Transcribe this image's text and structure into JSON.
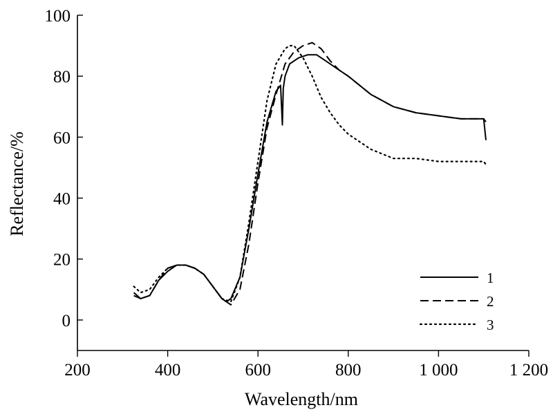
{
  "chart_data": {
    "type": "line",
    "title": "",
    "xlabel": "Wavelength/nm",
    "ylabel": "Reflectance/%",
    "xlim": [
      200,
      1200
    ],
    "ylim": [
      -10,
      100
    ],
    "xticks": [
      200,
      400,
      600,
      800,
      1000,
      1200
    ],
    "xtick_labels": [
      "200",
      "400",
      "600",
      "800",
      "1 000",
      "1 200"
    ],
    "yticks": [
      0,
      20,
      40,
      60,
      80,
      100
    ],
    "ytick_labels": [
      "0",
      "20",
      "40",
      "60",
      "80",
      "100"
    ],
    "grid": false,
    "legend_position": "bottom-right",
    "series": [
      {
        "name": "1",
        "style": "solid",
        "x": [
          325,
          340,
          360,
          380,
          400,
          420,
          440,
          460,
          480,
          500,
          520,
          530,
          540,
          560,
          580,
          600,
          620,
          640,
          650,
          654,
          656,
          660,
          670,
          690,
          710,
          730,
          750,
          780,
          800,
          850,
          900,
          950,
          1000,
          1050,
          1100,
          1105
        ],
        "y": [
          8,
          7,
          8,
          13,
          16,
          18,
          18,
          17,
          15,
          11,
          7,
          6,
          7,
          14,
          30,
          48,
          65,
          75,
          77,
          64,
          76,
          80,
          84,
          86,
          87,
          87,
          85,
          82,
          80,
          74,
          70,
          68,
          67,
          66,
          66,
          59
        ]
      },
      {
        "name": "2",
        "style": "dashed",
        "x": [
          325,
          340,
          360,
          380,
          400,
          420,
          440,
          460,
          480,
          500,
          520,
          540,
          560,
          580,
          600,
          620,
          640,
          660,
          680,
          700,
          720,
          740,
          760,
          780,
          800,
          850,
          900,
          950,
          1000,
          1050,
          1100,
          1105
        ],
        "y": [
          9,
          7,
          8,
          13,
          17,
          18,
          18,
          17,
          15,
          11,
          7,
          5,
          10,
          25,
          45,
          63,
          74,
          84,
          88,
          90,
          91,
          89,
          85,
          82,
          80,
          74,
          70,
          68,
          67,
          66,
          66,
          65
        ]
      },
      {
        "name": "3",
        "style": "dotted",
        "x": [
          325,
          340,
          360,
          380,
          400,
          420,
          440,
          460,
          480,
          500,
          520,
          540,
          560,
          580,
          600,
          620,
          640,
          660,
          670,
          680,
          700,
          710,
          720,
          740,
          760,
          780,
          800,
          850,
          900,
          950,
          1000,
          1050,
          1100,
          1105
        ],
        "y": [
          11,
          9,
          10,
          14,
          17,
          18,
          18,
          17,
          15,
          11,
          7,
          6,
          14,
          32,
          52,
          72,
          84,
          89,
          90,
          90,
          86,
          83,
          80,
          73,
          68,
          64,
          61,
          56,
          53,
          53,
          52,
          52,
          52,
          51
        ]
      }
    ]
  }
}
